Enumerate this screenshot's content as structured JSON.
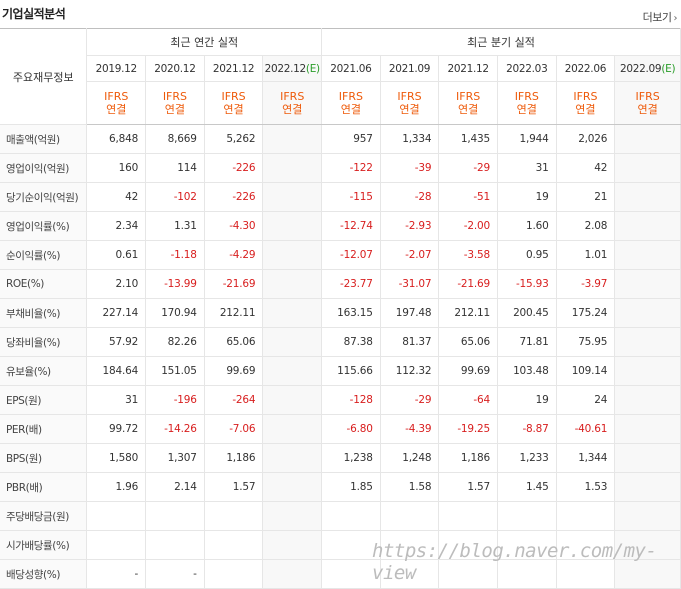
{
  "header": {
    "title": "기업실적분석",
    "more_label": "더보기"
  },
  "table": {
    "corner_label": "주요재무정보",
    "annual_group_label": "최근 연간 실적",
    "quarter_group_label": "최근 분기 실적",
    "annual_periods": [
      "2019.12",
      "2020.12",
      "2021.12",
      "2022.12"
    ],
    "quarter_periods": [
      "2021.06",
      "2021.09",
      "2021.12",
      "2022.03",
      "2022.06",
      "2022.09"
    ],
    "est_mark": "(E)",
    "ifrs_line1": "IFRS",
    "ifrs_line2": "연결",
    "rows": [
      {
        "label": "매출액(억원)",
        "values": [
          "6,848",
          "8,669",
          "5,262",
          "",
          "957",
          "1,334",
          "1,435",
          "1,944",
          "2,026",
          ""
        ]
      },
      {
        "label": "영업이익(억원)",
        "values": [
          "160",
          "114",
          "-226",
          "",
          "-122",
          "-39",
          "-29",
          "31",
          "42",
          ""
        ]
      },
      {
        "label": "당기순이익(억원)",
        "values": [
          "42",
          "-102",
          "-226",
          "",
          "-115",
          "-28",
          "-51",
          "19",
          "21",
          ""
        ]
      },
      {
        "label": "영업이익률(%)",
        "values": [
          "2.34",
          "1.31",
          "-4.30",
          "",
          "-12.74",
          "-2.93",
          "-2.00",
          "1.60",
          "2.08",
          ""
        ]
      },
      {
        "label": "순이익률(%)",
        "values": [
          "0.61",
          "-1.18",
          "-4.29",
          "",
          "-12.07",
          "-2.07",
          "-3.58",
          "0.95",
          "1.01",
          ""
        ]
      },
      {
        "label": "ROE(%)",
        "values": [
          "2.10",
          "-13.99",
          "-21.69",
          "",
          "-23.77",
          "-31.07",
          "-21.69",
          "-15.93",
          "-3.97",
          ""
        ]
      },
      {
        "label": "부채비율(%)",
        "values": [
          "227.14",
          "170.94",
          "212.11",
          "",
          "163.15",
          "197.48",
          "212.11",
          "200.45",
          "175.24",
          ""
        ]
      },
      {
        "label": "당좌비율(%)",
        "values": [
          "57.92",
          "82.26",
          "65.06",
          "",
          "87.38",
          "81.37",
          "65.06",
          "71.81",
          "75.95",
          ""
        ]
      },
      {
        "label": "유보율(%)",
        "values": [
          "184.64",
          "151.05",
          "99.69",
          "",
          "115.66",
          "112.32",
          "99.69",
          "103.48",
          "109.14",
          ""
        ]
      },
      {
        "label": "EPS(원)",
        "values": [
          "31",
          "-196",
          "-264",
          "",
          "-128",
          "-29",
          "-64",
          "19",
          "24",
          ""
        ]
      },
      {
        "label": "PER(배)",
        "values": [
          "99.72",
          "-14.26",
          "-7.06",
          "",
          "-6.80",
          "-4.39",
          "-19.25",
          "-8.87",
          "-40.61",
          ""
        ]
      },
      {
        "label": "BPS(원)",
        "values": [
          "1,580",
          "1,307",
          "1,186",
          "",
          "1,238",
          "1,248",
          "1,186",
          "1,233",
          "1,344",
          ""
        ]
      },
      {
        "label": "PBR(배)",
        "values": [
          "1.96",
          "2.14",
          "1.57",
          "",
          "1.85",
          "1.58",
          "1.57",
          "1.45",
          "1.53",
          ""
        ]
      },
      {
        "label": "주당배당금(원)",
        "values": [
          "",
          "",
          "",
          "",
          "",
          "",
          "",
          "",
          "",
          ""
        ]
      },
      {
        "label": "시가배당률(%)",
        "values": [
          "",
          "",
          "",
          "",
          "",
          "",
          "",
          "",
          "",
          ""
        ]
      },
      {
        "label": "배당성향(%)",
        "values": [
          "-",
          "-",
          "",
          "",
          "",
          "",
          "",
          "",
          "",
          ""
        ]
      }
    ],
    "section_starts": [
      3,
      6,
      9,
      13
    ]
  },
  "watermark": "https://blog.naver.com/my-view",
  "colors": {
    "negative": "#d81e1e",
    "ifrs": "#ee5a0a",
    "estimate": "#2a9d2a"
  }
}
